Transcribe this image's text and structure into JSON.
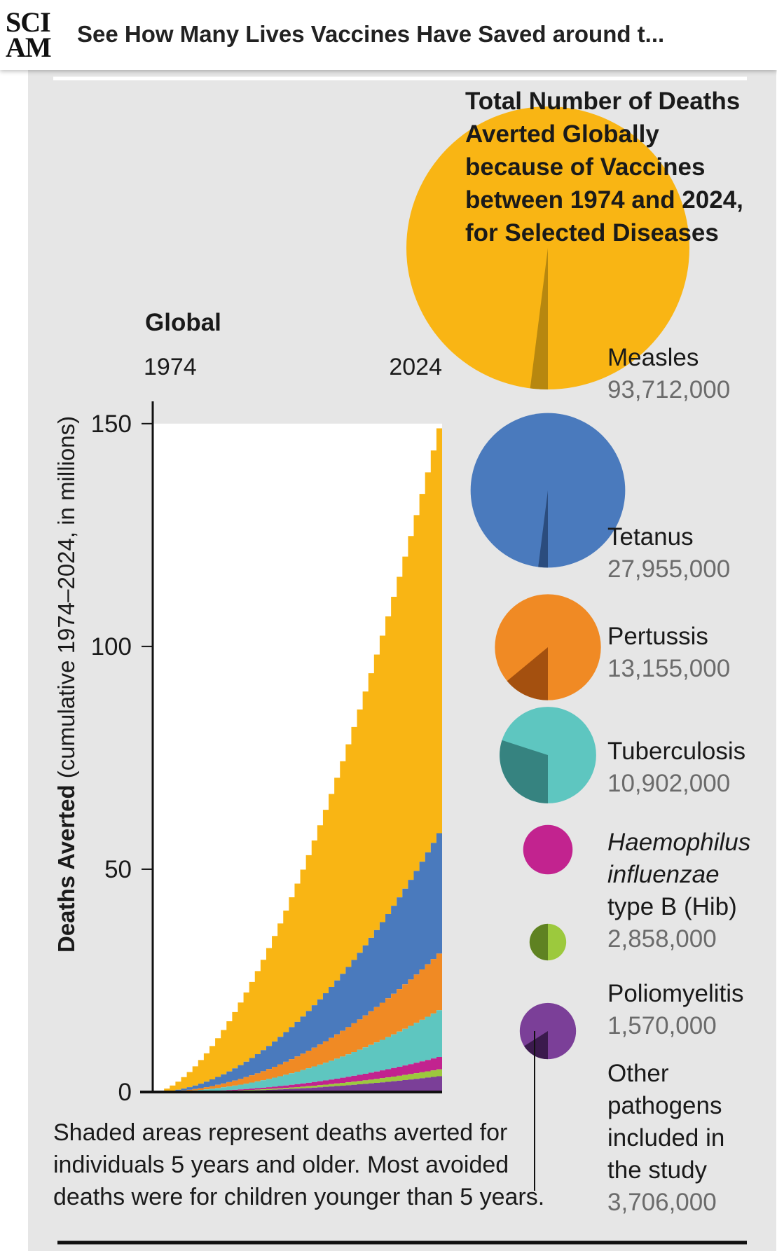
{
  "header": {
    "logo_line1": "SCI",
    "logo_line2": "AM",
    "article_title": "See How Many Lives Vaccines Have Saved around t..."
  },
  "chart_data": [
    {
      "type": "area",
      "title": "Global",
      "x_start_label": "1974",
      "x_end_label": "2024",
      "ylabel_bold": "Deaths Averted",
      "ylabel_rest": " (cumulative 1974–2024, in millions)",
      "yticks": [
        0,
        50,
        100,
        150
      ],
      "ylim": [
        0,
        155
      ],
      "x": [
        1974,
        2024
      ],
      "stacked": true,
      "series": [
        {
          "name": "Other pathogens",
          "final_value": 3.7,
          "color": "#7b3f98"
        },
        {
          "name": "Poliomyelitis",
          "final_value": 1.6,
          "color": "#9cc93d"
        },
        {
          "name": "Haemophilus influenzae type B (Hib)",
          "final_value": 2.9,
          "color": "#c2238f"
        },
        {
          "name": "Tuberculosis",
          "final_value": 10.9,
          "color": "#5ec6c0"
        },
        {
          "name": "Pertussis",
          "final_value": 13.2,
          "color": "#f08a24"
        },
        {
          "name": "Tetanus",
          "final_value": 28.0,
          "color": "#4a7abd"
        },
        {
          "name": "Measles",
          "final_value": 93.7,
          "color": "#f9b514"
        }
      ],
      "footnote": [
        "Shaded areas represent deaths averted for",
        "individuals 5 years and older. Most avoided",
        "deaths were for children younger than 5 years."
      ]
    },
    {
      "type": "pie",
      "title": [
        "Total Number of Deaths",
        "Averted Globally",
        "because of Vaccines",
        "between 1974 and 2024,",
        "for Selected Diseases"
      ],
      "items": [
        {
          "label": [
            "Measles"
          ],
          "value_text": "93,712,000",
          "value": 93712000,
          "share_5_and_older": 0.02,
          "color": "#f9b514",
          "dark": "#b7870f",
          "italic": false
        },
        {
          "label": [
            "Tetanus"
          ],
          "value_text": "27,955,000",
          "value": 27955000,
          "share_5_and_older": 0.02,
          "color": "#4a7abd",
          "dark": "#2b4c7d",
          "italic": false
        },
        {
          "label": [
            "Pertussis"
          ],
          "value_text": "13,155,000",
          "value": 13155000,
          "share_5_and_older": 0.14,
          "color": "#f08a24",
          "dark": "#a4500f",
          "italic": false
        },
        {
          "label": [
            "Tuberculosis"
          ],
          "value_text": "10,902,000",
          "value": 10902000,
          "share_5_and_older": 0.3,
          "color": "#5ec6c0",
          "dark": "#368380",
          "italic": false
        },
        {
          "label": [
            "Haemophilus",
            "influenzae",
            "type B (Hib)"
          ],
          "value_text": "2,858,000",
          "value": 2858000,
          "share_5_and_older": 0.0,
          "color": "#c2238f",
          "dark": "#7d1660",
          "italic": true
        },
        {
          "label": [
            "Poliomyelitis"
          ],
          "value_text": "1,570,000",
          "value": 1570000,
          "share_5_and_older": 0.5,
          "color": "#9cc93d",
          "dark": "#5f8222",
          "italic": false
        },
        {
          "label": [
            "Other",
            "pathogens",
            "included in",
            "the study"
          ],
          "value_text": "3,706,000",
          "value": 3706000,
          "share_5_and_older": 0.16,
          "color": "#7b3f98",
          "dark": "#3b1a4d",
          "italic": false
        }
      ]
    }
  ]
}
